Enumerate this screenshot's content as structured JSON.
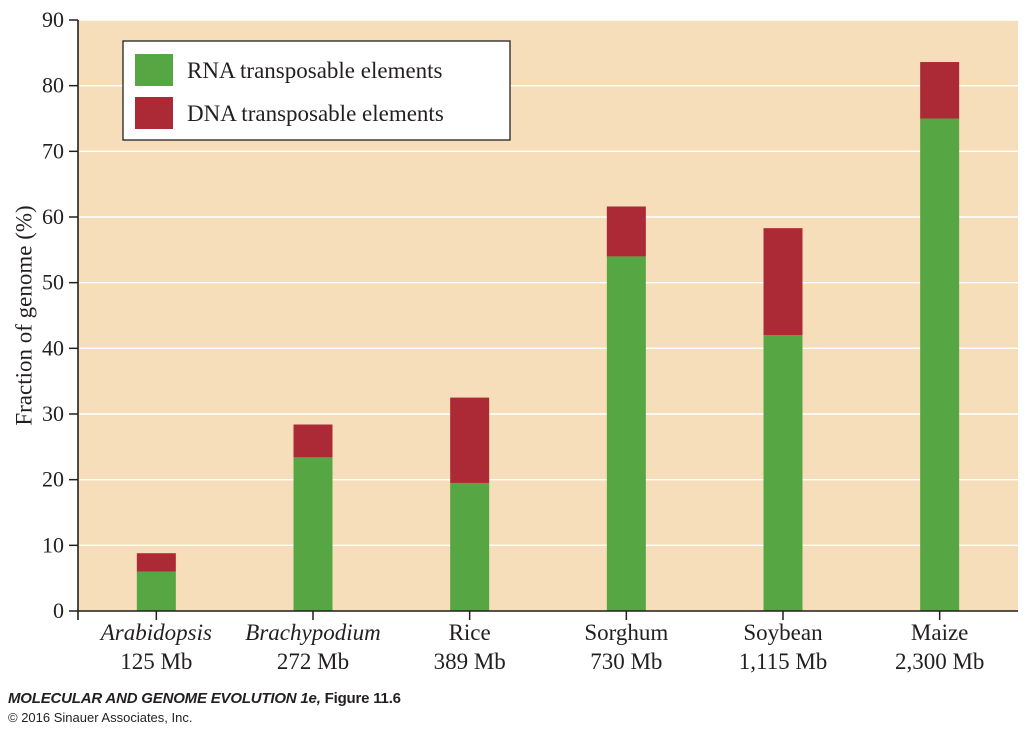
{
  "chart_data": {
    "type": "bar",
    "stacked": true,
    "title": "",
    "xlabel": "",
    "ylabel": "Fraction of genome (%)",
    "ylim": [
      0,
      90
    ],
    "yticks": [
      0,
      10,
      20,
      30,
      40,
      50,
      60,
      70,
      80,
      90
    ],
    "grid": true,
    "legend_position": "top-left",
    "categories": [
      {
        "name": "Arabidopsis",
        "italic": true,
        "size": "125 Mb"
      },
      {
        "name": "Brachypodium",
        "italic": true,
        "size": "272 Mb"
      },
      {
        "name": "Rice",
        "italic": false,
        "size": "389 Mb"
      },
      {
        "name": "Sorghum",
        "italic": false,
        "size": "730 Mb"
      },
      {
        "name": "Soybean",
        "italic": false,
        "size": "1,115 Mb"
      },
      {
        "name": "Maize",
        "italic": false,
        "size": "2,300 Mb"
      }
    ],
    "series": [
      {
        "name": "RNA transposable elements",
        "color": "#56a644",
        "values": [
          6,
          23.4,
          19.5,
          54,
          42,
          75
        ]
      },
      {
        "name": "DNA transposable elements",
        "color": "#ac2a36",
        "values": [
          2.8,
          5,
          13,
          7.6,
          16.3,
          8.6
        ]
      }
    ],
    "colors": {
      "background": "#f6debb",
      "grid": "#ffffff",
      "axis": "#231f20"
    }
  },
  "credit": {
    "title": "MOLECULAR AND GENOME EVOLUTION 1e,",
    "figure": "Figure 11.6",
    "copyright": "© 2016 Sinauer Associates, Inc."
  }
}
